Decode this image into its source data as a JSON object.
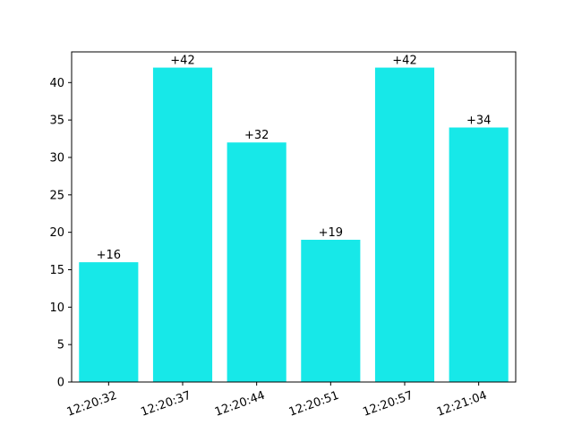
{
  "chart_data": {
    "type": "bar",
    "title": "",
    "xlabel": "",
    "ylabel": "",
    "categories": [
      "12:20:32",
      "12:20:37",
      "12:20:44",
      "12:20:51",
      "12:20:57",
      "12:21:04"
    ],
    "values": [
      16,
      42,
      32,
      19,
      42,
      34
    ],
    "data_labels": [
      "+16",
      "+42",
      "+32",
      "+19",
      "+42",
      "+34"
    ],
    "ylim": [
      0,
      44.1
    ],
    "yticks": [
      0,
      5,
      10,
      15,
      20,
      25,
      30,
      35,
      40
    ],
    "ytick_labels": [
      "0",
      "5",
      "10",
      "15",
      "20",
      "25",
      "30",
      "35",
      "40"
    ],
    "xtick_rotation_deg": 20,
    "grid": false,
    "legend": "none",
    "bar_color": "#17e8e8"
  }
}
